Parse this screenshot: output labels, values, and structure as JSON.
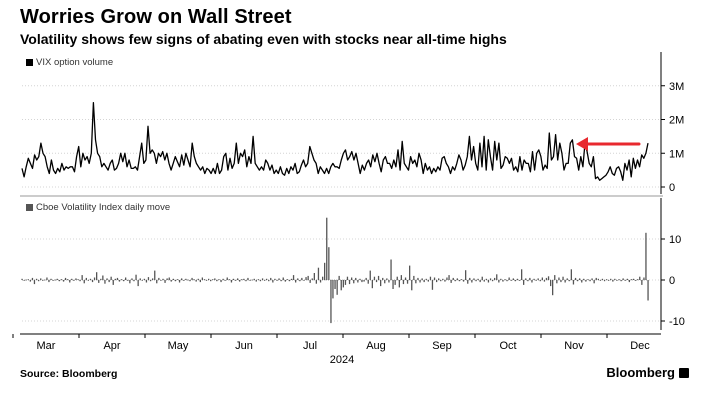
{
  "title": "Worries Grow on Wall Street",
  "subtitle": "Volatility shows few signs of abating even with stocks near all-time highs",
  "source": "Source: Bloomberg",
  "brand": "Bloomberg",
  "colors": {
    "line": "#000000",
    "bars": "#555555",
    "arrow": "#e8282e",
    "grid": "#d4d4d4"
  },
  "chart_data": [
    {
      "type": "line",
      "series": [
        {
          "name": "VIX option volume",
          "values": [
            0.55,
            0.3,
            0.6,
            0.85,
            0.7,
            0.55,
            0.95,
            0.8,
            0.9,
            1.3,
            1.0,
            0.9,
            0.6,
            0.4,
            0.8,
            0.5,
            0.4,
            0.55,
            0.45,
            0.7,
            0.5,
            0.6,
            0.55,
            0.6,
            0.6,
            0.45,
            0.9,
            1.2,
            0.6,
            1.0,
            0.8,
            0.9,
            0.7,
            1.0,
            2.5,
            1.4,
            1.0,
            0.9,
            0.6,
            0.7,
            0.6,
            0.5,
            0.7,
            0.8,
            0.5,
            0.55,
            0.7,
            1.0,
            0.75,
            1.0,
            0.6,
            0.8,
            0.55,
            0.55,
            0.6,
            0.5,
            0.9,
            1.3,
            0.7,
            0.8,
            1.8,
            1.0,
            1.1,
            1.0,
            0.7,
            1.0,
            0.9,
            1.05,
            0.8,
            1.0,
            0.7,
            0.5,
            0.7,
            0.9,
            0.75,
            0.6,
            0.95,
            0.65,
            1.0,
            0.8,
            0.6,
            1.3,
            0.9,
            0.7,
            0.6,
            0.5,
            0.6,
            0.4,
            0.55,
            0.5,
            0.4,
            0.55,
            0.4,
            0.7,
            0.4,
            0.5,
            0.9,
            1.0,
            0.5,
            0.85,
            0.55,
            0.7,
            1.3,
            0.7,
            1.0,
            0.9,
            1.1,
            0.6,
            0.9,
            0.7,
            1.5,
            0.7,
            0.6,
            0.5,
            0.6,
            0.5,
            0.8,
            0.7,
            0.5,
            0.65,
            0.4,
            0.5,
            0.4,
            0.6,
            0.4,
            0.35,
            0.55,
            0.4,
            0.6,
            0.5,
            0.7,
            0.4,
            0.45,
            0.65,
            0.8,
            0.6,
            0.7,
            1.2,
            1.0,
            0.8,
            0.7,
            0.4,
            0.6,
            0.5,
            0.4,
            0.55,
            0.4,
            0.6,
            0.7,
            0.6,
            0.6,
            0.55,
            0.8,
            1.0,
            1.1,
            0.8,
            0.9,
            1.05,
            0.8,
            1.0,
            0.7,
            0.4,
            0.65,
            0.5,
            0.7,
            0.8,
            0.6,
            0.95,
            0.75,
            1.0,
            0.7,
            0.45,
            0.8,
            0.9,
            0.7,
            0.7,
            0.55,
            0.8,
            0.6,
            1.1,
            0.5,
            1.35,
            0.7,
            0.6,
            0.5,
            0.9,
            0.7,
            0.8,
            0.6,
            1.0,
            0.8,
            0.4,
            0.7,
            0.5,
            0.6,
            0.4,
            0.55,
            0.45,
            0.6,
            0.5,
            0.85,
            0.9,
            0.7,
            0.6,
            0.4,
            0.6,
            0.5,
            0.7,
            0.95,
            0.8,
            0.5,
            0.65,
            0.9,
            1.5,
            0.8,
            1.2,
            0.7,
            0.5,
            1.3,
            0.6,
            1.5,
            0.5,
            1.4,
            0.9,
            0.5,
            1.35,
            0.8,
            1.3,
            0.55,
            0.65,
            0.9,
            0.85,
            0.7,
            0.85,
            0.5,
            0.6,
            0.45,
            0.9,
            0.5,
            0.8,
            0.7,
            0.7,
            0.45,
            1.05,
            0.5,
            1.0,
            1.1,
            0.9,
            0.5,
            0.65,
            0.55,
            1.6,
            0.8,
            0.9,
            1.55,
            0.8,
            1.3,
            1.0,
            0.5,
            0.7,
            0.7,
            1.3,
            1.4,
            0.9,
            0.85,
            0.5,
            0.9,
            0.6,
            1.3,
            1.05,
            0.7,
            0.6,
            0.9,
            0.25,
            0.3,
            0.2,
            0.25,
            0.3,
            0.35,
            0.45,
            0.6,
            0.4,
            0.35,
            0.55,
            0.6,
            0.45,
            0.2,
            0.7,
            0.5,
            0.8,
            0.3,
            0.85,
            0.55,
            0.8,
            0.6,
            0.95,
            0.85,
            1.0,
            1.3
          ]
        }
      ],
      "yticks": [
        "0",
        "1M",
        "2M",
        "3M"
      ],
      "ylim": [
        0,
        4
      ],
      "annotation": "red arrow pointing left at November volume spike"
    },
    {
      "type": "bar",
      "series": [
        {
          "name": "Cboe Volatility Index daily move",
          "values": [
            0.3,
            -0.2,
            0.1,
            0.2,
            -0.4,
            0.5,
            -1.0,
            0.3,
            -0.3,
            0.4,
            -0.2,
            0.1,
            0.6,
            -0.5,
            0.3,
            -0.2,
            0.1,
            0.3,
            -0.3,
            0.2,
            -0.4,
            0.5,
            0.2,
            -0.6,
            0.3,
            -0.1,
            0.4,
            0.2,
            -0.3,
            1.2,
            -0.8,
            0.5,
            -0.2,
            0.3,
            -0.5,
            0.6,
            1.9,
            -0.7,
            0.3,
            1.1,
            -0.9,
            0.4,
            -0.5,
            0.8,
            -1.2,
            0.3,
            0.5,
            -0.4,
            0.2,
            -0.3,
            0.6,
            -0.2,
            -0.8,
            0.4,
            -0.3,
            1.3,
            -1.5,
            0.4,
            -0.2,
            0.3,
            -0.6,
            0.7,
            -0.3,
            0.4,
            2.3,
            -0.8,
            0.5,
            -0.2,
            0.3,
            -0.7,
            0.4,
            0.6,
            -0.4,
            0.3,
            -0.3,
            0.2,
            -0.6,
            0.4,
            -0.2,
            0.3,
            0.1,
            -0.3,
            0.5,
            0.2,
            -0.4,
            0.3,
            -0.5,
            0.6,
            0.2,
            -0.2,
            0.3,
            -0.3,
            0.2,
            0.4,
            -0.3,
            0.2,
            -0.5,
            0.3,
            -0.2,
            0.6,
            0.2,
            -0.6,
            0.3,
            -0.2,
            0.4,
            -0.4,
            0.2,
            0.3,
            -0.3,
            0.5,
            -0.2,
            0.1,
            0.3,
            -0.4,
            0.2,
            -0.3,
            0.4,
            -0.2,
            0.3,
            -0.3,
            0.5,
            -0.6,
            0.3,
            -0.2,
            0.4,
            -0.3,
            0.6,
            -0.4,
            0.2,
            -0.3,
            0.3,
            1.2,
            -0.6,
            0.4,
            -0.3,
            0.5,
            -0.2,
            0.7,
            1.0,
            -0.7,
            0.4,
            1.7,
            -0.9,
            3.0,
            -0.6,
            0.8,
            4.2,
            15.2,
            8.0,
            -10.5,
            -4.5,
            -2.2,
            -3.6,
            1.0,
            -2.5,
            -1.8,
            -1.2,
            0.8,
            -1.0,
            0.6,
            -0.8,
            0.5,
            -0.6,
            0.3,
            -0.5,
            -0.4,
            0.5,
            -0.9,
            2.3,
            -2.0,
            0.8,
            -0.5,
            1.0,
            -1.5,
            0.5,
            -0.8,
            0.4,
            -0.6,
            5.0,
            -2.2,
            -1.2,
            0.8,
            -1.8,
            1.2,
            -1.0,
            0.6,
            -0.9,
            3.5,
            -2.5,
            1.0,
            -0.8,
            0.5,
            -0.6,
            0.4,
            -0.5,
            0.3,
            -0.4,
            0.8,
            -2.4,
            0.6,
            -0.5,
            0.4,
            -0.3,
            0.3,
            -0.4,
            0.6,
            1.2,
            -0.7,
            0.5,
            -0.3,
            0.4,
            -0.3,
            0.2,
            -0.4,
            2.4,
            -0.9,
            0.5,
            -0.6,
            0.4,
            -0.3,
            0.3,
            -0.5,
            0.8,
            -0.4,
            0.3,
            -0.6,
            0.4,
            -0.3,
            0.5,
            1.4,
            -0.6,
            0.3,
            -0.4,
            0.2,
            -0.3,
            0.6,
            -0.2,
            0.4,
            -0.3,
            0.3,
            -0.2,
            2.6,
            -1.2,
            0.4,
            -0.3,
            0.5,
            -0.6,
            0.3,
            -0.2,
            0.4,
            -0.3,
            0.6,
            -0.4,
            0.5,
            0.9,
            -1.5,
            -3.7,
            1.2,
            -0.8,
            0.6,
            -0.5,
            0.8,
            -0.6,
            0.4,
            -0.3,
            2.6,
            -1.1,
            0.5,
            -0.3,
            0.4,
            -0.6,
            0.3,
            -0.4,
            0.2,
            -0.3,
            0.4,
            -0.8,
            0.5,
            0.3,
            -0.2,
            0.3,
            -0.3,
            0.2,
            -0.2,
            0.3,
            -0.4,
            0.3,
            -0.2,
            0.2,
            -0.3,
            0.4,
            -0.2,
            0.3,
            -0.5,
            0.2,
            0.3,
            -0.2,
            0.2,
            0.8,
            -1.2,
            0.6,
            11.5,
            -5.0
          ]
        }
      ],
      "yticks": [
        "-10",
        "0",
        "10"
      ],
      "ylim": [
        -12,
        18
      ]
    }
  ],
  "x_axis": {
    "months": [
      "Mar",
      "Apr",
      "May",
      "Jun",
      "Jul",
      "Aug",
      "Sep",
      "Oct",
      "Nov",
      "Dec"
    ],
    "year": "2024"
  }
}
